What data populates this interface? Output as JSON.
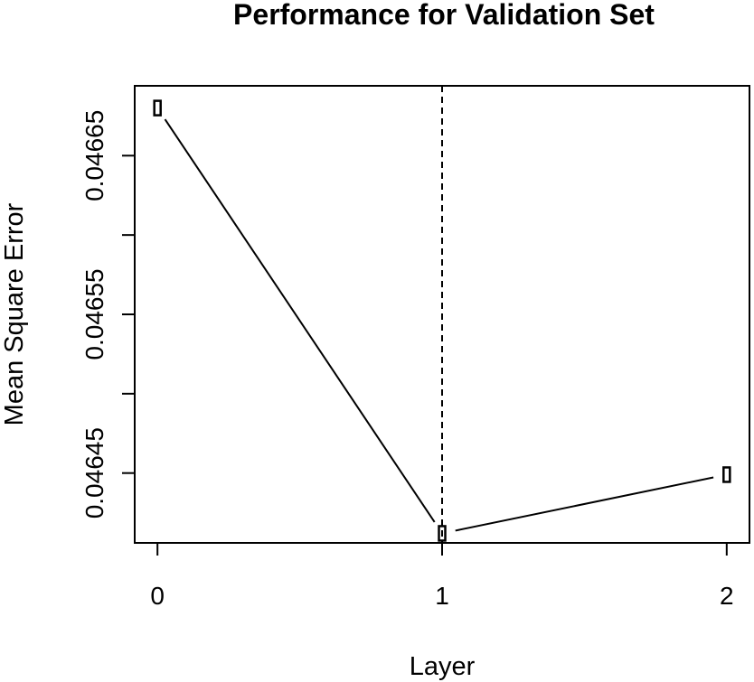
{
  "chart_data": {
    "type": "line",
    "title": "Performance for Validation Set",
    "xlabel": "Layer",
    "ylabel": "Mean Square Error",
    "x": [
      0,
      1,
      2
    ],
    "x_ticks": [
      0,
      1,
      2
    ],
    "x_tick_labels": [
      "0",
      "1",
      "2"
    ],
    "xlim": [
      -0.08,
      2.08
    ],
    "y_ticks": [
      0.04645,
      0.0465,
      0.04655,
      0.0466,
      0.04665
    ],
    "y_tick_labels": [
      "0.04645",
      "",
      "0.04655",
      "",
      "0.04665"
    ],
    "ylim": [
      0.046406,
      0.046694
    ],
    "series": [
      {
        "values": [
          0.04668,
          0.046412,
          0.046449
        ]
      }
    ],
    "reference_line_x": 1,
    "grid": false,
    "marker": "open-rectangle"
  }
}
